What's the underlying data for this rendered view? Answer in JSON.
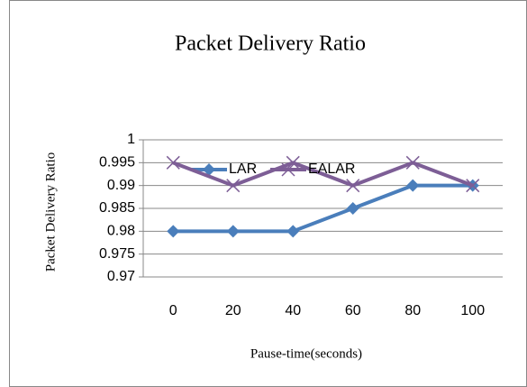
{
  "chart_data": {
    "type": "line",
    "title": "Packet Delivery Ratio",
    "x_label": "Pause-time(seconds)",
    "y_label": "Packet Delivery Ratio",
    "categories": [
      0,
      20,
      40,
      60,
      80,
      100
    ],
    "series": [
      {
        "name": "LAR",
        "color": "#4a7ebb",
        "marker": "diamond",
        "values": [
          0.98,
          0.98,
          0.98,
          0.985,
          0.99,
          0.99
        ]
      },
      {
        "name": "EALAR",
        "color": "#7d5e96",
        "marker": "x",
        "values": [
          0.995,
          0.99,
          0.995,
          0.99,
          0.995,
          0.99
        ]
      }
    ],
    "ylim": [
      0.97,
      1
    ],
    "yticks": [
      0.97,
      0.975,
      0.98,
      0.985,
      0.99,
      0.995,
      1
    ],
    "grid": true,
    "legend": "top"
  }
}
